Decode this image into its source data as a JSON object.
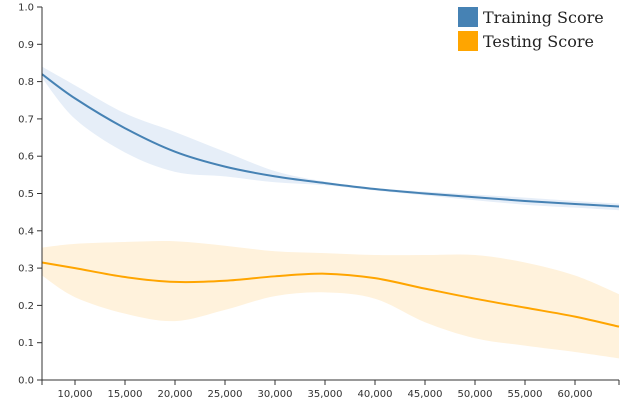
{
  "chart_data": {
    "type": "line",
    "x": [
      6700,
      10000,
      15000,
      20000,
      25000,
      30000,
      35000,
      40000,
      45000,
      50000,
      55000,
      60000,
      64400
    ],
    "xlim": [
      6700,
      64400
    ],
    "ylim": [
      0,
      1
    ],
    "x_ticks": [
      10000,
      15000,
      20000,
      25000,
      30000,
      35000,
      40000,
      45000,
      50000,
      55000,
      60000
    ],
    "x_tick_labels": [
      "10,000",
      "15,000",
      "20,000",
      "25,000",
      "30,000",
      "35,000",
      "40,000",
      "45,000",
      "50,000",
      "55,000",
      "60,000"
    ],
    "y_ticks": [
      0,
      0.1,
      0.2,
      0.3,
      0.4,
      0.5,
      0.6,
      0.7,
      0.8,
      0.9,
      1
    ],
    "y_tick_labels": [
      "0.0",
      "0.1",
      "0.2",
      "0.3",
      "0.4",
      "0.5",
      "0.6",
      "0.7",
      "0.8",
      "0.9",
      "1.0"
    ],
    "grid": false,
    "legend_position": "top-right",
    "series": [
      {
        "name": "Training Score",
        "color": "#4682b4",
        "band_color": "#e6eef8",
        "values": [
          0.82,
          0.755,
          0.675,
          0.612,
          0.572,
          0.546,
          0.528,
          0.512,
          0.5,
          0.49,
          0.48,
          0.472,
          0.465
        ],
        "lower": [
          0.81,
          0.7,
          0.61,
          0.558,
          0.546,
          0.53,
          0.522,
          0.508,
          0.495,
          0.482,
          0.47,
          0.462,
          0.455
        ],
        "upper": [
          0.84,
          0.79,
          0.715,
          0.665,
          0.612,
          0.56,
          0.532,
          0.515,
          0.505,
          0.497,
          0.489,
          0.48,
          0.473
        ]
      },
      {
        "name": "Testing Score",
        "color": "#ffa500",
        "band_color": "#fff2dc",
        "values": [
          0.315,
          0.3,
          0.276,
          0.263,
          0.266,
          0.278,
          0.285,
          0.273,
          0.245,
          0.218,
          0.194,
          0.17,
          0.143
        ],
        "lower": [
          0.28,
          0.222,
          0.178,
          0.158,
          0.188,
          0.225,
          0.235,
          0.218,
          0.155,
          0.112,
          0.092,
          0.075,
          0.058
        ],
        "upper": [
          0.355,
          0.365,
          0.37,
          0.372,
          0.36,
          0.345,
          0.34,
          0.335,
          0.335,
          0.335,
          0.315,
          0.28,
          0.23
        ]
      }
    ]
  }
}
